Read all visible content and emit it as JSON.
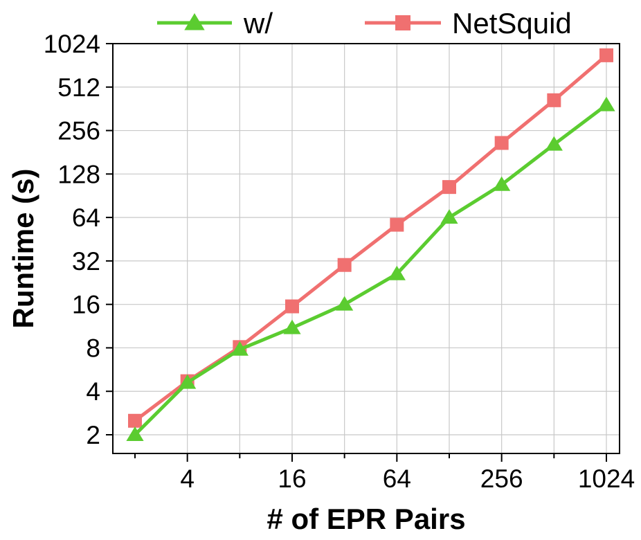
{
  "chart_data": {
    "type": "line",
    "xlabel": "# of EPR Pairs",
    "ylabel": "Runtime (s)",
    "x_scale": "log2",
    "y_scale": "log2",
    "xlim": [
      1.5,
      1200
    ],
    "ylim": [
      1.6,
      1024
    ],
    "x_ticks": [
      4,
      16,
      64,
      256,
      1024
    ],
    "x_tick_labels": [
      "4",
      "16",
      "64",
      "256",
      "1024"
    ],
    "y_ticks": [
      2,
      4,
      8,
      16,
      32,
      64,
      128,
      256,
      512,
      1024
    ],
    "y_tick_labels": [
      "2",
      "4",
      "8",
      "16",
      "32",
      "64",
      "128",
      "256",
      "512",
      "1024"
    ],
    "grid": true,
    "legend_position": "top",
    "x": [
      2,
      4,
      8,
      16,
      32,
      64,
      128,
      256,
      512,
      1024
    ],
    "series": [
      {
        "name": "w/",
        "marker": "triangle",
        "color": "#5bcc30",
        "values": [
          2,
          4.6,
          7.8,
          11,
          16,
          26,
          64,
          108,
          205,
          385
        ]
      },
      {
        "name": "NetSquid",
        "marker": "square",
        "color": "#f07070",
        "values": [
          2.5,
          4.7,
          8.1,
          15.5,
          30,
          57,
          104,
          210,
          415,
          850
        ]
      }
    ]
  }
}
